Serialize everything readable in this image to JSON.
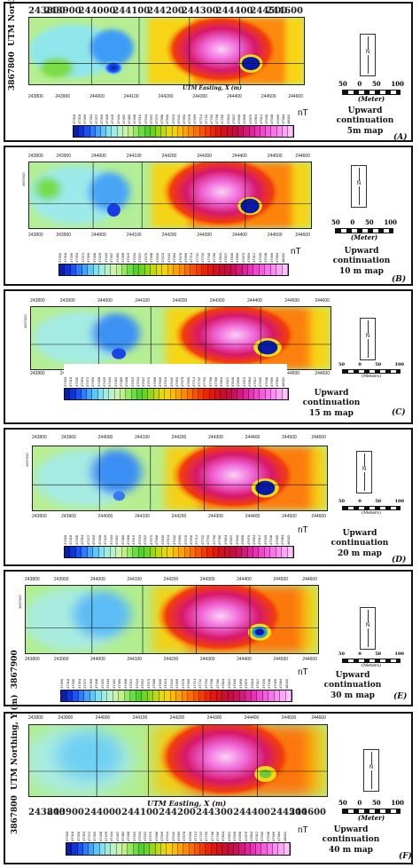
{
  "axes": {
    "x_ticks": [
      "243800",
      "243900",
      "244000",
      "244100",
      "244200",
      "244300",
      "244400",
      "244500",
      "244600"
    ],
    "x_label": "UTM Easting, X (m)",
    "y_label": "UTM Northing, Y (m)",
    "y_ticks": [
      "3867800",
      "3867900"
    ]
  },
  "colorbar": {
    "unit": "nT",
    "values_small": [
      "47300",
      "47318",
      "47336",
      "47354",
      "47372",
      "47390",
      "47408",
      "47426",
      "47444",
      "47462",
      "47480",
      "47498",
      "47516",
      "47534",
      "47552",
      "47570",
      "47588",
      "47606",
      "47624",
      "47642",
      "47660",
      "47678",
      "47696",
      "47714",
      "47732",
      "47750",
      "47768",
      "47786",
      "47804",
      "47822",
      "47840",
      "47858",
      "47876",
      "47894",
      "47912",
      "47930",
      "47948",
      "47966",
      "47984",
      "48002"
    ],
    "colors": [
      "#0a1ea8",
      "#0e33d6",
      "#1c53f0",
      "#2e7cf6",
      "#45a4f7",
      "#62c6f5",
      "#83e0ee",
      "#a2ecdf",
      "#bcf0c8",
      "#cdf2a9",
      "#bff08b",
      "#96e864",
      "#6bdc45",
      "#52d032",
      "#6dd226",
      "#98d51b",
      "#c0d715",
      "#e2d812",
      "#f6cf0f",
      "#fcb90c",
      "#fda10a",
      "#fd8808",
      "#fc6d07",
      "#f95306",
      "#f33b06",
      "#ea2607",
      "#df1811",
      "#d2121f",
      "#c7102f",
      "#c20f43",
      "#c9125a",
      "#d3197a",
      "#de2599",
      "#e734b5",
      "#ee48cb",
      "#f25edb",
      "#f676e7",
      "#f98eef",
      "#fba7f5",
      "#fdc3fa"
    ]
  },
  "north_label": "N",
  "scale": {
    "ticks": [
      "50",
      "0",
      "50",
      "100"
    ],
    "unit": "(Meter)",
    "unit_small": "(Meters)"
  },
  "panels": [
    {
      "caption": "Upward continuation\n5m map",
      "letter": "(A)"
    },
    {
      "caption": "Upward continuation\n10 m map",
      "letter": "(B)"
    },
    {
      "caption": "Upward continuation\n15 m map",
      "letter": "(C)"
    },
    {
      "caption": "Upward continuation\n20 m map",
      "letter": "(D)"
    },
    {
      "caption": "Upward continuation\n30 m map",
      "letter": "(E)"
    },
    {
      "caption": "Upward continuation\n40 m map",
      "letter": "(F)"
    }
  ]
}
